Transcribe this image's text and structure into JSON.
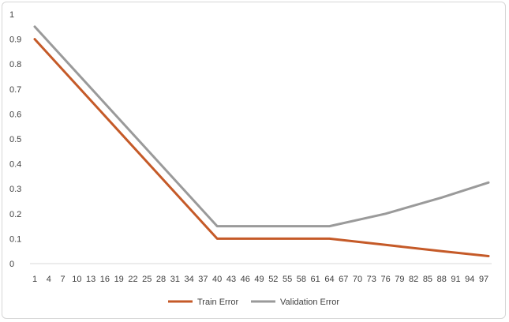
{
  "chart_data": {
    "type": "line",
    "title": "",
    "xlabel": "",
    "ylabel": "",
    "ylim": [
      0,
      1
    ],
    "yticks": [
      "0",
      "0.1",
      "0.2",
      "0.3",
      "0.4",
      "0.5",
      "0.6",
      "0.7",
      "0.8",
      "0.9",
      "1"
    ],
    "xticks": [
      "1",
      "4",
      "7",
      "10",
      "13",
      "16",
      "19",
      "22",
      "25",
      "28",
      "31",
      "34",
      "37",
      "40",
      "43",
      "46",
      "49",
      "52",
      "55",
      "58",
      "61",
      "64",
      "67",
      "70",
      "73",
      "76",
      "79",
      "82",
      "85",
      "88",
      "91",
      "94",
      "97"
    ],
    "grid": false,
    "legend_position": "bottom",
    "series": [
      {
        "name": "Train Error",
        "color": "#c55a28",
        "points": [
          [
            1,
            0.9
          ],
          [
            40,
            0.1
          ],
          [
            64,
            0.1
          ],
          [
            76,
            0.075
          ],
          [
            88,
            0.05
          ],
          [
            98,
            0.03
          ]
        ]
      },
      {
        "name": "Validation Error",
        "color": "#9a9a9a",
        "points": [
          [
            1,
            0.95
          ],
          [
            40,
            0.15
          ],
          [
            64,
            0.15
          ],
          [
            76,
            0.2
          ],
          [
            88,
            0.265
          ],
          [
            98,
            0.325
          ]
        ]
      }
    ]
  }
}
